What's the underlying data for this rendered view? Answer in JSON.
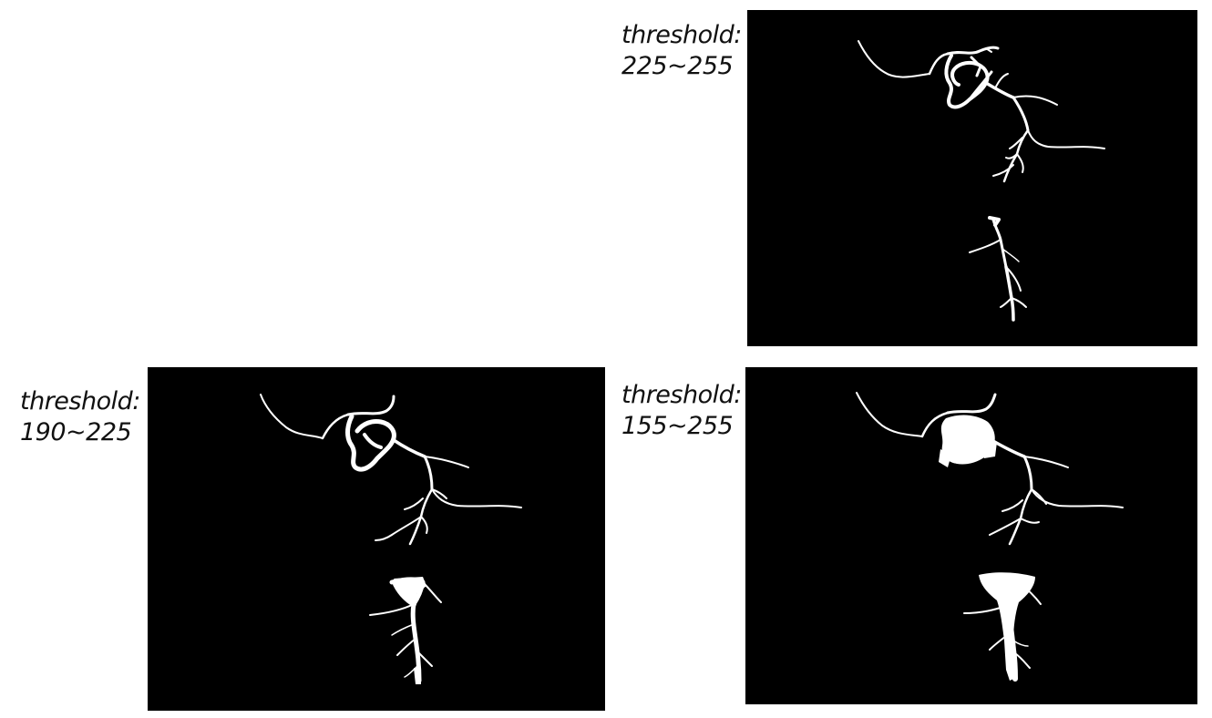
{
  "panels": [
    {
      "id": "top-right",
      "label_line1": "threshold:",
      "label_line2": "225~255"
    },
    {
      "id": "bottom-left",
      "label_line1": "threshold:",
      "label_line2": "190~225"
    },
    {
      "id": "bottom-right",
      "label_line1": "threshold:",
      "label_line2": "155~255"
    }
  ],
  "colors": {
    "background": "#ffffff",
    "panel": "#000000",
    "structure": "#ffffff",
    "text": "#111111"
  }
}
